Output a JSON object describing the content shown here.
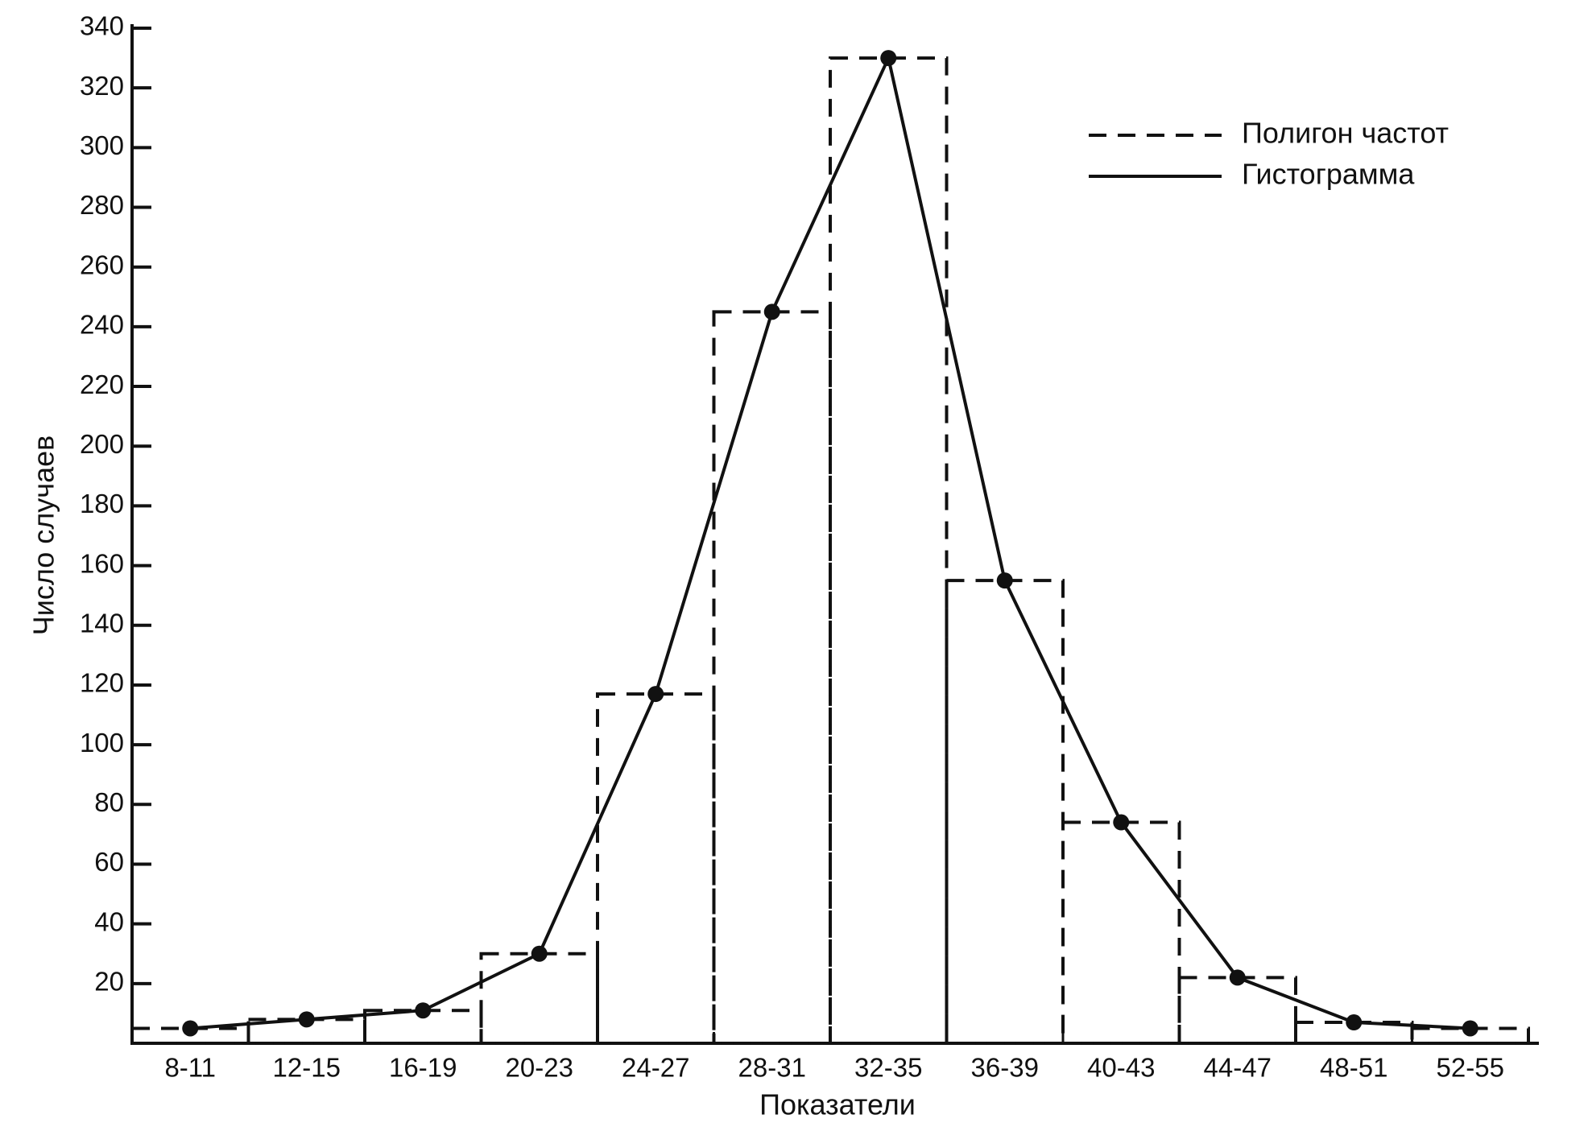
{
  "chart_data": {
    "type": "histogram",
    "ylabel": "Число случаев",
    "xlabel": "Показатели",
    "categories": [
      "8-11",
      "12-15",
      "16-19",
      "20-23",
      "24-27",
      "28-31",
      "32-35",
      "36-39",
      "40-43",
      "44-47",
      "48-51",
      "52-55"
    ],
    "values": [
      5,
      8,
      11,
      30,
      117,
      245,
      330,
      155,
      74,
      22,
      7,
      5
    ],
    "ylim": [
      0,
      340
    ],
    "yticks": [
      20,
      40,
      60,
      80,
      100,
      120,
      140,
      160,
      180,
      200,
      220,
      240,
      260,
      280,
      300,
      320,
      340
    ],
    "color": "#111111",
    "legend": [
      {
        "name": "Полигон частот",
        "style": "dashed"
      },
      {
        "name": "Гистограмма",
        "style": "solid"
      }
    ]
  }
}
